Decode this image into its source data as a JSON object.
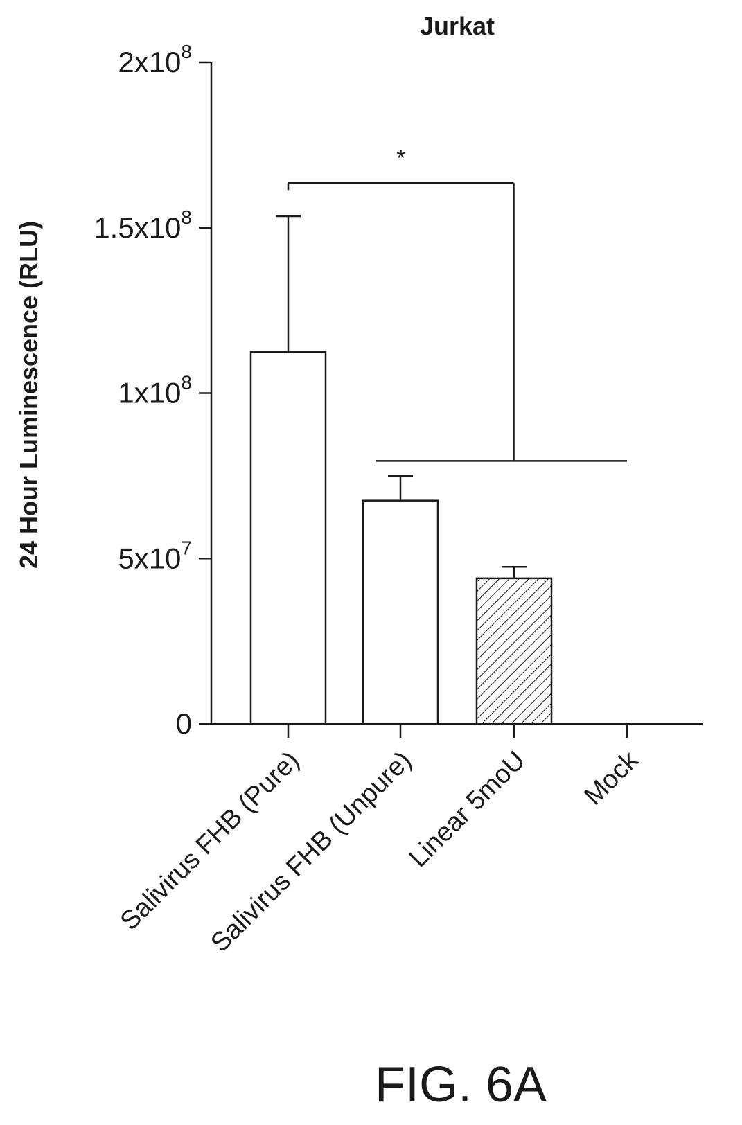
{
  "chart_data": {
    "type": "bar",
    "title": "Jurkat",
    "ylabel": "24 Hour Luminescence (RLU)",
    "xlabel": "",
    "ylim": [
      0,
      200000000
    ],
    "y_ticks": [
      {
        "value": 0,
        "mantissa": "0",
        "exponent": ""
      },
      {
        "value": 50000000,
        "mantissa": "5x10",
        "exponent": "7"
      },
      {
        "value": 100000000,
        "mantissa": "1x10",
        "exponent": "8"
      },
      {
        "value": 150000000,
        "mantissa": "1.5x10",
        "exponent": "8"
      },
      {
        "value": 200000000,
        "mantissa": "2x10",
        "exponent": "8"
      }
    ],
    "categories": [
      "Salivirus FHB (Pure)",
      "Salivirus FHB (Unpure)",
      "Linear 5moU",
      "Mock"
    ],
    "values": [
      112500000,
      67500000,
      44000000,
      0
    ],
    "error_upper": [
      153500000,
      75000000,
      47500000,
      0
    ],
    "fills": [
      "none",
      "none",
      "hatched",
      "none"
    ],
    "significance": {
      "label": "*",
      "from_category": 0,
      "to_categories": [
        1,
        2,
        3
      ],
      "left_level": 163500000,
      "right_level": 79500000
    },
    "grid": false,
    "legend": "none"
  },
  "caption": "FIG. 6A"
}
